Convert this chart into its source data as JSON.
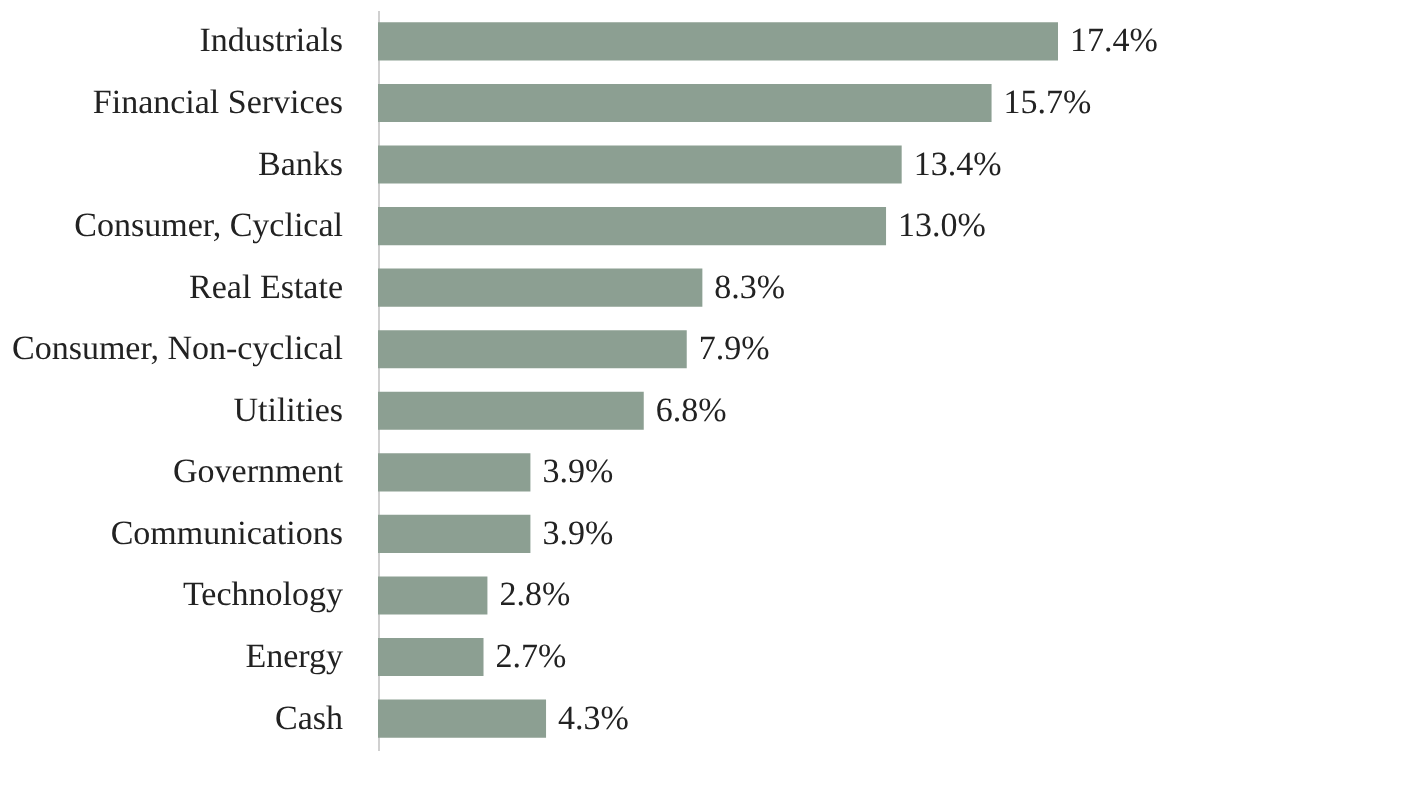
{
  "chart_data": {
    "type": "bar",
    "orientation": "horizontal",
    "categories": [
      "Industrials",
      "Financial Services",
      "Banks",
      "Consumer, Cyclical",
      "Real Estate",
      "Consumer, Non-cyclical",
      "Utilities",
      "Government",
      "Communications",
      "Technology",
      "Energy",
      "Cash"
    ],
    "values": [
      17.4,
      15.7,
      13.4,
      13.0,
      8.3,
      7.9,
      6.8,
      3.9,
      3.9,
      2.8,
      2.7,
      4.3
    ],
    "value_labels": [
      "17.4%",
      "15.7%",
      "13.4%",
      "13.0%",
      "8.3%",
      "7.9%",
      "6.8%",
      "3.9%",
      "3.9%",
      "2.8%",
      "2.7%",
      "4.3%"
    ],
    "color": "#8c9f92"
  }
}
